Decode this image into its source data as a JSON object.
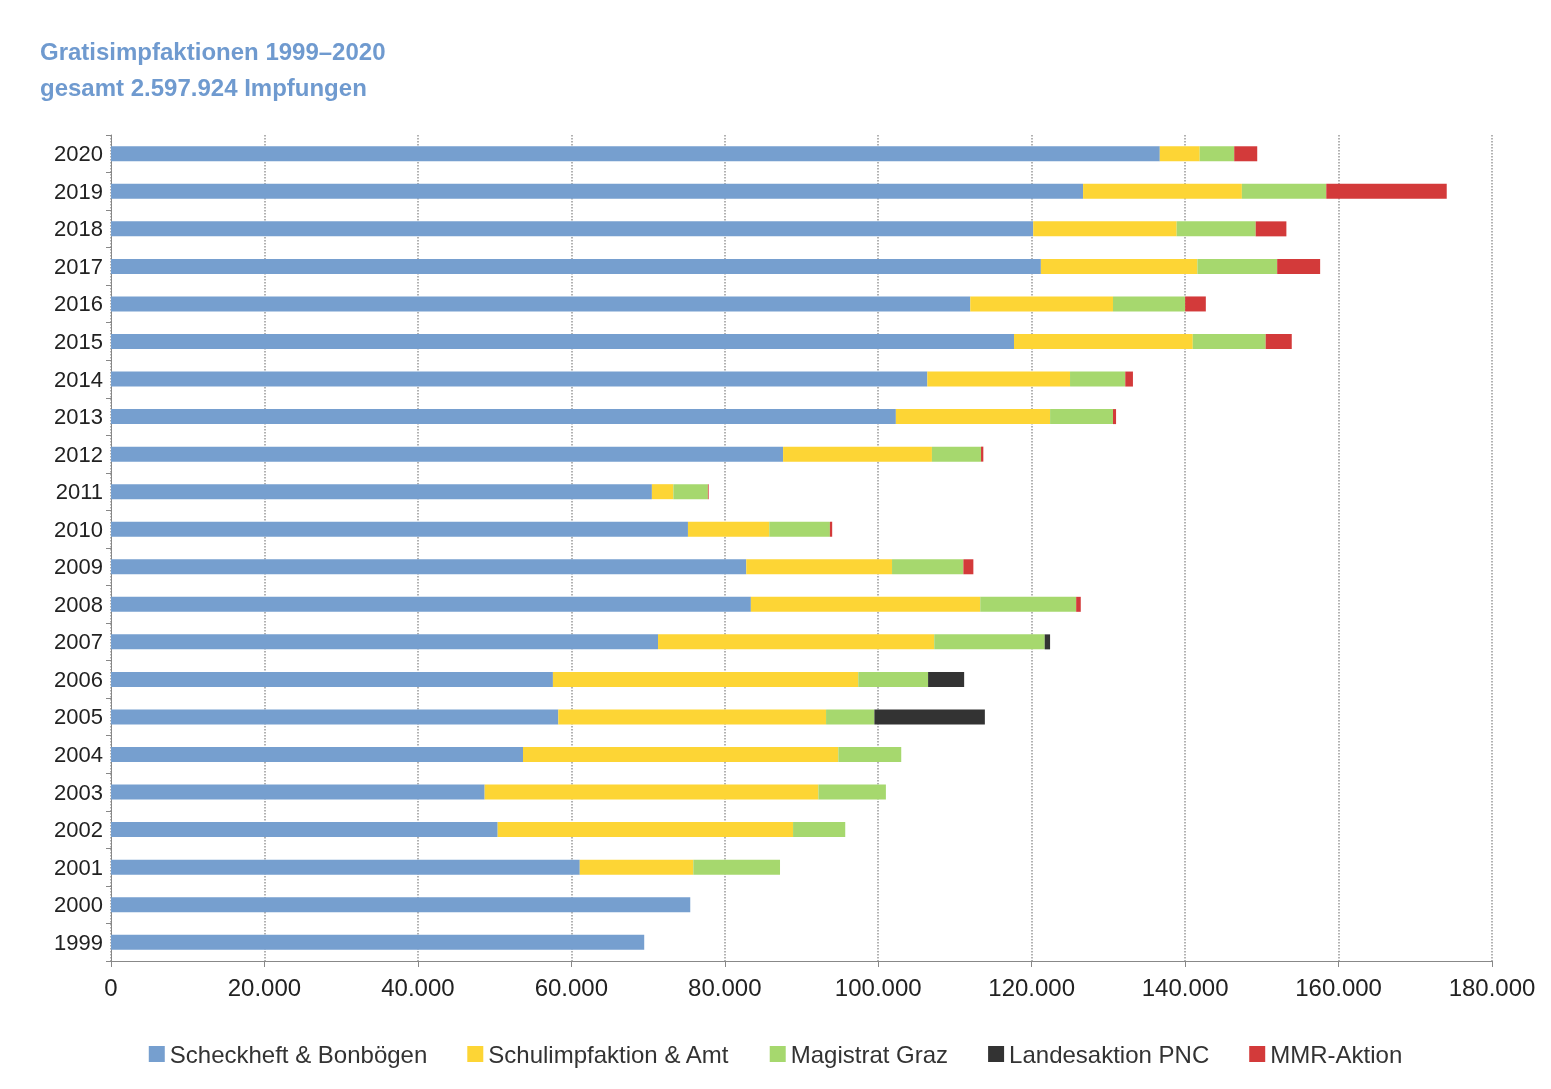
{
  "chart_data": {
    "type": "bar",
    "orientation": "horizontal",
    "stacked": true,
    "title": "Gratisimpfaktionen 1999–2020",
    "subtitle": "gesamt 2.597.924 Impfungen",
    "categories": [
      "2020",
      "2019",
      "2018",
      "2017",
      "2016",
      "2015",
      "2014",
      "2013",
      "2012",
      "2011",
      "2010",
      "2009",
      "2008",
      "2007",
      "2006",
      "2005",
      "2004",
      "2003",
      "2002",
      "2001",
      "2000",
      "1999"
    ],
    "series": [
      {
        "name": "Scheckheft & Bonbögen",
        "color": "#769fcf",
        "values": [
          136700,
          126700,
          120200,
          121200,
          112000,
          117700,
          106400,
          102300,
          87600,
          70500,
          75200,
          82800,
          83400,
          71300,
          57600,
          58300,
          53700,
          48700,
          50400,
          61100,
          75500,
          69500
        ]
      },
      {
        "name": "Schulimpfaktion & Amt",
        "color": "#fdd535",
        "values": [
          5200,
          20700,
          18700,
          20400,
          18600,
          23300,
          18600,
          20100,
          19400,
          2800,
          10600,
          19000,
          29900,
          36000,
          39800,
          34900,
          41100,
          43500,
          38500,
          14800,
          null,
          null
        ]
      },
      {
        "name": "Magistrat Graz",
        "color": "#a6d86e",
        "values": [
          4500,
          11000,
          10300,
          10400,
          9400,
          9500,
          7200,
          8200,
          6400,
          4500,
          7900,
          9300,
          12500,
          14400,
          9100,
          6300,
          8200,
          8800,
          6800,
          11300,
          null,
          null
        ]
      },
      {
        "name": "Landesaktion PNC",
        "color": "#333333",
        "values": [
          null,
          null,
          null,
          null,
          null,
          null,
          null,
          null,
          null,
          null,
          null,
          null,
          null,
          700,
          4700,
          14400,
          null,
          null,
          null,
          null,
          null,
          null
        ]
      },
      {
        "name": "MMR-Aktion",
        "color": "#d33a3a",
        "values": [
          3000,
          15700,
          4000,
          5600,
          2700,
          3400,
          1000,
          400,
          300,
          100,
          300,
          1300,
          600,
          null,
          null,
          null,
          null,
          null,
          null,
          null,
          null,
          null
        ]
      }
    ],
    "xlim": [
      0,
      180000
    ],
    "xticks": [
      0,
      {
        "value": 20000,
        "label": "20.000"
      },
      {
        "value": 40000,
        "label": "40.000"
      },
      {
        "value": 60000,
        "label": "60.000"
      },
      {
        "value": 80000,
        "label": "80.000"
      },
      {
        "value": 100000,
        "label": "100.000"
      },
      {
        "value": 120000,
        "label": "120.000"
      },
      {
        "value": 140000,
        "label": "140.000"
      },
      {
        "value": 160000,
        "label": "160.000"
      },
      {
        "value": 180000,
        "label": "180.000"
      }
    ],
    "grid": "x",
    "legend": "bottom"
  }
}
